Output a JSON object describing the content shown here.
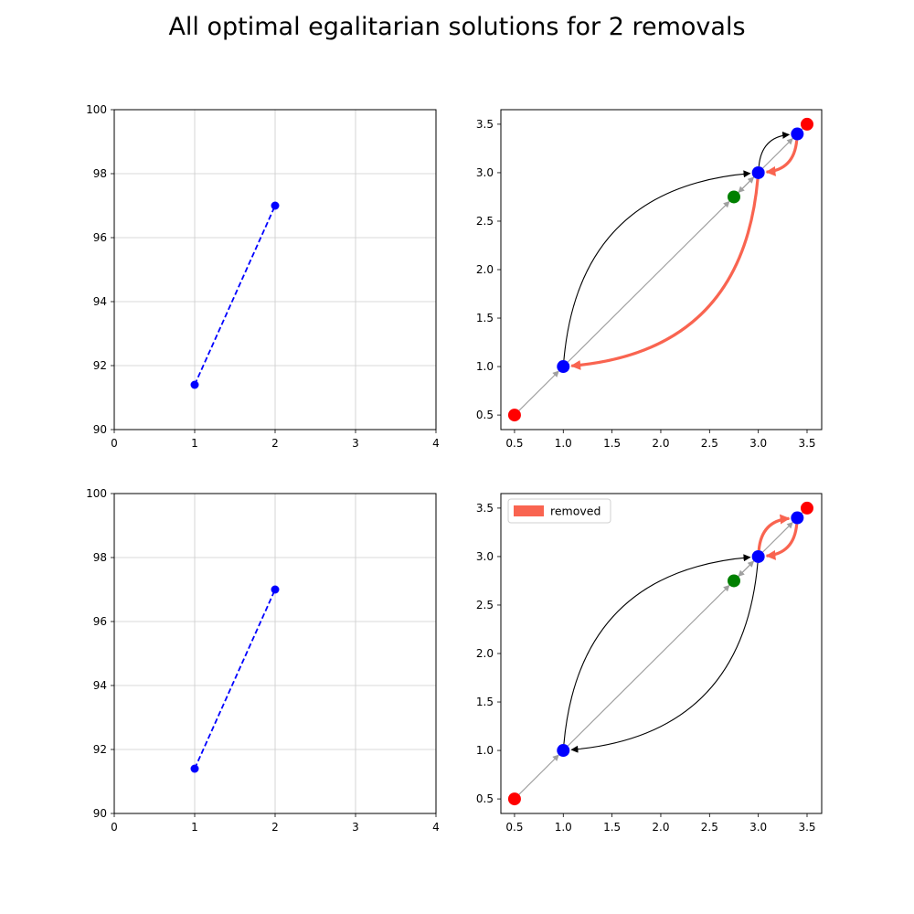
{
  "title": "All optimal egalitarian solutions for 2 removals",
  "colors": {
    "line": "#0000ff",
    "node_blue": "#0000ff",
    "node_red": "#ff0000",
    "node_green": "#008000",
    "removed": "#f96450",
    "gray_edge": "#a0a0a0",
    "curve": "#000000",
    "grid": "#cccccc"
  },
  "chart_data": [
    {
      "type": "line",
      "panel": "top-left",
      "x": [
        1,
        2
      ],
      "y": [
        91.4,
        97.0
      ],
      "line_style": "dashed",
      "marker": "circle",
      "xlim": [
        0,
        4
      ],
      "ylim": [
        90,
        100
      ],
      "xticks": [
        "0",
        "1",
        "2",
        "3",
        "4"
      ],
      "yticks": [
        "90",
        "92",
        "94",
        "96",
        "98",
        "100"
      ],
      "grid": true
    },
    {
      "type": "scatter",
      "panel": "top-right",
      "xlim": [
        0.36,
        3.65
      ],
      "ylim": [
        0.35,
        3.65
      ],
      "xticks": [
        "0.5",
        "1.0",
        "1.5",
        "2.0",
        "2.5",
        "3.0",
        "3.5"
      ],
      "yticks": [
        "0.5",
        "1.0",
        "1.5",
        "2.0",
        "2.5",
        "3.0",
        "3.5"
      ],
      "grid": false,
      "nodes": [
        {
          "x": 0.5,
          "y": 0.5,
          "color": "red"
        },
        {
          "x": 1.0,
          "y": 1.0,
          "color": "blue"
        },
        {
          "x": 2.75,
          "y": 2.75,
          "color": "green"
        },
        {
          "x": 3.0,
          "y": 3.0,
          "color": "blue"
        },
        {
          "x": 3.4,
          "y": 3.4,
          "color": "blue"
        },
        {
          "x": 3.5,
          "y": 3.5,
          "color": "red"
        }
      ],
      "gray_edges": [
        {
          "from": [
            0.5,
            0.5
          ],
          "to": [
            1.0,
            1.0
          ]
        },
        {
          "from": [
            1.0,
            1.0
          ],
          "to": [
            2.75,
            2.75
          ]
        },
        {
          "from": [
            2.75,
            2.75
          ],
          "to": [
            3.0,
            3.0
          ]
        },
        {
          "from": [
            3.0,
            3.0
          ],
          "to": [
            2.75,
            2.75
          ]
        },
        {
          "from": [
            3.0,
            3.0
          ],
          "to": [
            3.4,
            3.4
          ]
        },
        {
          "from": [
            3.4,
            3.4
          ],
          "to": [
            3.5,
            3.5
          ]
        }
      ],
      "curved_edges": [
        {
          "from": [
            1.0,
            1.0
          ],
          "to": [
            3.0,
            3.0
          ],
          "bend": "upper",
          "removed": false
        },
        {
          "from": [
            3.0,
            3.0
          ],
          "to": [
            1.0,
            1.0
          ],
          "bend": "lower",
          "removed": true
        },
        {
          "from": [
            3.0,
            3.0
          ],
          "to": [
            3.4,
            3.4
          ],
          "bend": "upper",
          "removed": false
        },
        {
          "from": [
            3.4,
            3.4
          ],
          "to": [
            3.0,
            3.0
          ],
          "bend": "lower",
          "removed": true
        }
      ],
      "legend": null
    },
    {
      "type": "line",
      "panel": "bottom-left",
      "x": [
        1,
        2
      ],
      "y": [
        91.4,
        97.0
      ],
      "line_style": "dashed",
      "marker": "circle",
      "xlim": [
        0,
        4
      ],
      "ylim": [
        90,
        100
      ],
      "xticks": [
        "0",
        "1",
        "2",
        "3",
        "4"
      ],
      "yticks": [
        "90",
        "92",
        "94",
        "96",
        "98",
        "100"
      ],
      "grid": true
    },
    {
      "type": "scatter",
      "panel": "bottom-right",
      "xlim": [
        0.36,
        3.65
      ],
      "ylim": [
        0.35,
        3.65
      ],
      "xticks": [
        "0.5",
        "1.0",
        "1.5",
        "2.0",
        "2.5",
        "3.0",
        "3.5"
      ],
      "yticks": [
        "0.5",
        "1.0",
        "1.5",
        "2.0",
        "2.5",
        "3.0",
        "3.5"
      ],
      "grid": false,
      "nodes": [
        {
          "x": 0.5,
          "y": 0.5,
          "color": "red"
        },
        {
          "x": 1.0,
          "y": 1.0,
          "color": "blue"
        },
        {
          "x": 2.75,
          "y": 2.75,
          "color": "green"
        },
        {
          "x": 3.0,
          "y": 3.0,
          "color": "blue"
        },
        {
          "x": 3.4,
          "y": 3.4,
          "color": "blue"
        },
        {
          "x": 3.5,
          "y": 3.5,
          "color": "red"
        }
      ],
      "gray_edges": [
        {
          "from": [
            0.5,
            0.5
          ],
          "to": [
            1.0,
            1.0
          ]
        },
        {
          "from": [
            1.0,
            1.0
          ],
          "to": [
            2.75,
            2.75
          ]
        },
        {
          "from": [
            2.75,
            2.75
          ],
          "to": [
            3.0,
            3.0
          ]
        },
        {
          "from": [
            3.0,
            3.0
          ],
          "to": [
            2.75,
            2.75
          ]
        },
        {
          "from": [
            3.0,
            3.0
          ],
          "to": [
            3.4,
            3.4
          ]
        },
        {
          "from": [
            3.4,
            3.4
          ],
          "to": [
            3.5,
            3.5
          ]
        }
      ],
      "curved_edges": [
        {
          "from": [
            1.0,
            1.0
          ],
          "to": [
            3.0,
            3.0
          ],
          "bend": "upper",
          "removed": false
        },
        {
          "from": [
            3.0,
            3.0
          ],
          "to": [
            1.0,
            1.0
          ],
          "bend": "lower",
          "removed": false
        },
        {
          "from": [
            3.0,
            3.0
          ],
          "to": [
            3.4,
            3.4
          ],
          "bend": "upper",
          "removed": true
        },
        {
          "from": [
            3.4,
            3.4
          ],
          "to": [
            3.0,
            3.0
          ],
          "bend": "lower",
          "removed": true
        }
      ],
      "legend": {
        "label": "removed",
        "position": "upper-left"
      }
    }
  ]
}
